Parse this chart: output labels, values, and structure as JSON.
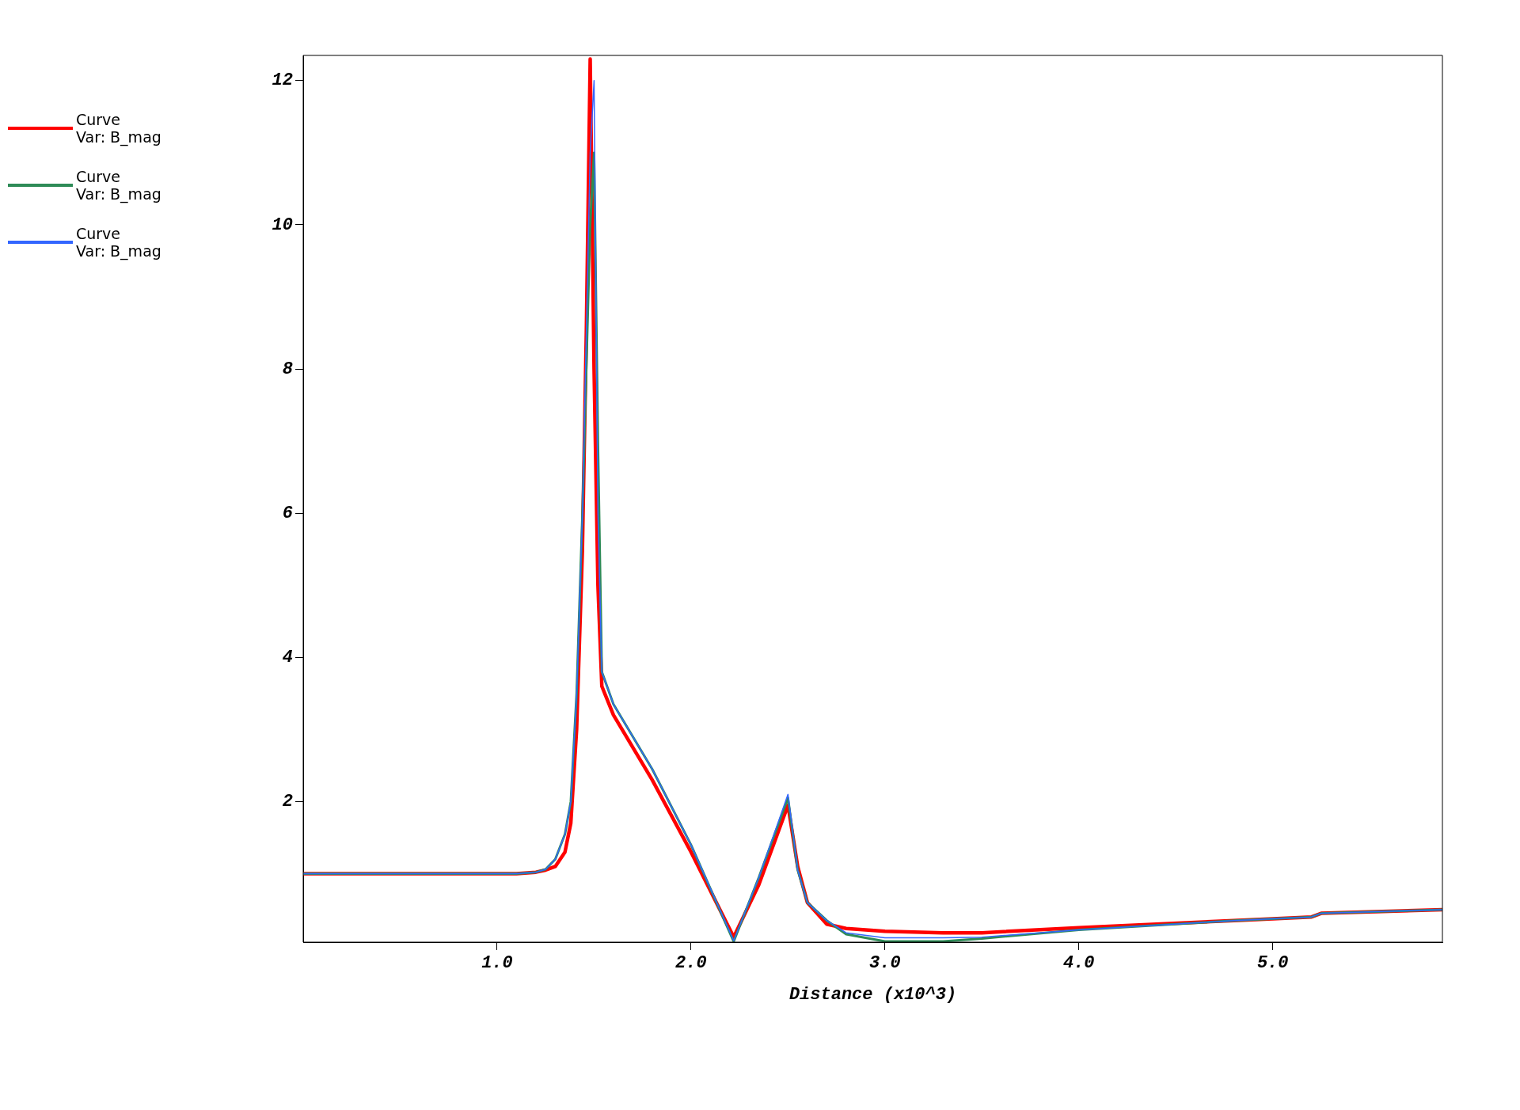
{
  "chart_data": {
    "type": "line",
    "xlabel": "Distance (x10^3)",
    "xlim": [
      0,
      5.875
    ],
    "ylim": [
      0.05,
      12.35
    ],
    "xticks": [
      {
        "value": 1,
        "label": "1.0"
      },
      {
        "value": 2,
        "label": "2.0"
      },
      {
        "value": 3,
        "label": "3.0"
      },
      {
        "value": 4,
        "label": "4.0"
      },
      {
        "value": 5,
        "label": "5.0"
      }
    ],
    "yticks": [
      2,
      4,
      6,
      8,
      10,
      12
    ],
    "grid": false,
    "legend": "top left",
    "marker": "none",
    "line_style": "solid",
    "series": [
      {
        "name": "Curve\nVar: B_mag",
        "color": "#ff0000",
        "x": [
          0,
          1.1,
          1.2,
          1.25,
          1.3,
          1.35,
          1.38,
          1.41,
          1.44,
          1.46,
          1.48,
          1.5,
          1.52,
          1.54,
          1.6,
          1.8,
          2.0,
          2.22,
          2.35,
          2.5,
          2.55,
          2.6,
          2.7,
          2.8,
          3.0,
          3.3,
          3.5,
          4.0,
          4.8,
          5.2,
          5.25,
          5.875
        ],
        "values": [
          1,
          1,
          1.02,
          1.05,
          1.1,
          1.3,
          1.7,
          3,
          5.5,
          8.5,
          12.3,
          8,
          5,
          3.6,
          3.2,
          2.3,
          1.3,
          0.12,
          0.85,
          1.95,
          1.1,
          0.6,
          0.3,
          0.24,
          0.2,
          0.18,
          0.18,
          0.25,
          0.35,
          0.4,
          0.45,
          0.5
        ]
      },
      {
        "name": "Curve\nVar: B_mag",
        "color": "#2e8b57",
        "x": [
          0,
          1.1,
          1.2,
          1.25,
          1.3,
          1.35,
          1.38,
          1.41,
          1.44,
          1.46,
          1.48,
          1.5,
          1.52,
          1.54,
          1.6,
          1.8,
          2.0,
          2.22,
          2.35,
          2.5,
          2.55,
          2.6,
          2.7,
          2.8,
          3.0,
          3.3,
          3.5,
          4.0,
          4.8,
          5.2,
          5.25,
          5.875
        ],
        "values": [
          1,
          1,
          1.02,
          1.06,
          1.2,
          1.55,
          2,
          3.5,
          6,
          8,
          10,
          11,
          7,
          3.8,
          3.35,
          2.45,
          1.4,
          0.06,
          0.95,
          2.05,
          1.05,
          0.6,
          0.35,
          0.16,
          0.06,
          0.06,
          0.1,
          0.22,
          0.35,
          0.4,
          0.45,
          0.5
        ]
      },
      {
        "name": "Curve\nVar: B_mag",
        "color": "#3366ff",
        "x": [
          0,
          1.1,
          1.2,
          1.25,
          1.3,
          1.35,
          1.38,
          1.41,
          1.44,
          1.46,
          1.48,
          1.5,
          1.52,
          1.54,
          1.6,
          1.8,
          2.0,
          2.22,
          2.35,
          2.5,
          2.55,
          2.6,
          2.7,
          2.8,
          3.0,
          3.3,
          3.5,
          4.0,
          4.8,
          5.2,
          5.25,
          5.875
        ],
        "values": [
          1,
          1,
          1.02,
          1.06,
          1.2,
          1.55,
          2,
          3.5,
          6,
          8.5,
          11,
          12,
          6,
          3.8,
          3.35,
          2.45,
          1.4,
          0.07,
          0.95,
          2.1,
          1.05,
          0.6,
          0.35,
          0.18,
          0.11,
          0.11,
          0.12,
          0.22,
          0.35,
          0.4,
          0.45,
          0.5
        ]
      }
    ]
  }
}
